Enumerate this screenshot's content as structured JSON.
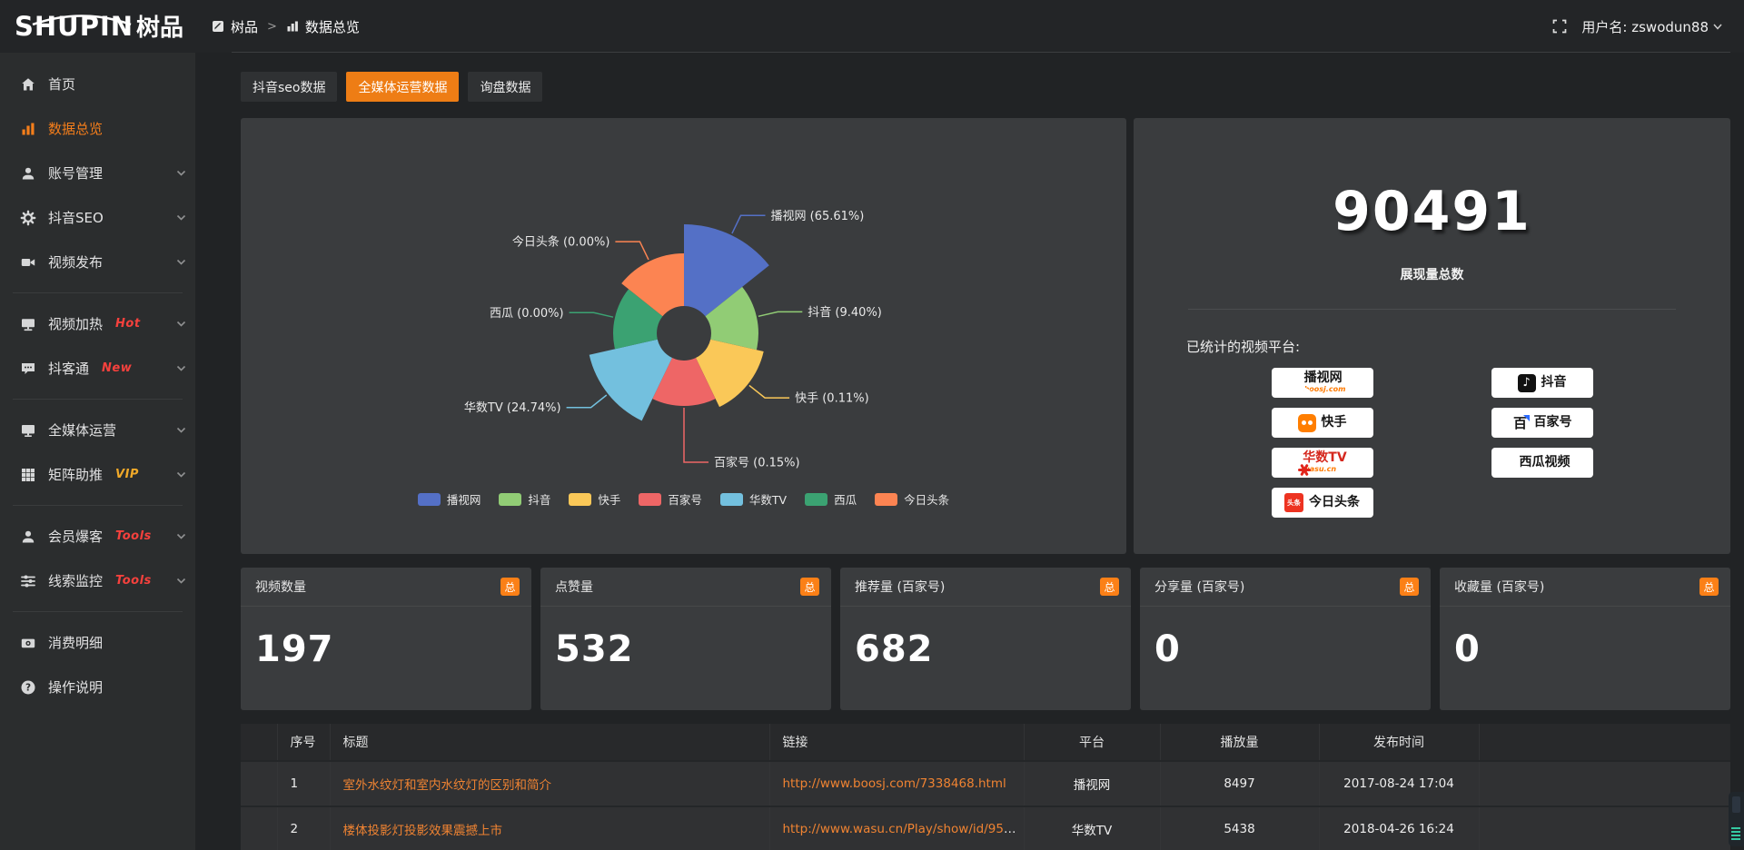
{
  "colors": {
    "accent_orange": "#ee7d15",
    "link_orange": "#ef8332",
    "badge_orange": "#fb8017",
    "tag_red": "#f5413d",
    "tag_vip": "#f0a929"
  },
  "header": {
    "logo_en": "SHUPIN",
    "logo_cn": "树品",
    "breadcrumb": {
      "root": "树品",
      "sep": ">",
      "current": "数据总览"
    },
    "user_label": "用户名: zswodun88"
  },
  "sidebar": {
    "items": [
      {
        "id": "home",
        "label": "首页",
        "icon": "home-icon"
      },
      {
        "id": "data-overview",
        "label": "数据总览",
        "icon": "chart-icon",
        "active": true
      },
      {
        "id": "account-management",
        "label": "账号管理",
        "icon": "user-icon",
        "chevron": true
      },
      {
        "id": "douyin-seo",
        "label": "抖音SEO",
        "icon": "gear-icon",
        "chevron": true
      },
      {
        "id": "video-publish",
        "label": "视频发布",
        "icon": "video-icon",
        "chevron": true,
        "divider_after": true
      },
      {
        "id": "video-heat",
        "label": "视频加热",
        "icon": "screen-icon",
        "tag": "Hot",
        "tag_style": "red",
        "chevron": true
      },
      {
        "id": "douketong",
        "label": "抖客通",
        "icon": "chat-icon",
        "tag": "New",
        "tag_style": "red",
        "chevron": true,
        "divider_after": true
      },
      {
        "id": "omnimedia",
        "label": "全媒体运营",
        "icon": "monitor-icon",
        "chevron": true
      },
      {
        "id": "matrix-boost",
        "label": "矩阵助推",
        "icon": "grid-icon",
        "tag": "VIP",
        "tag_style": "vip",
        "chevron": true,
        "divider_after": true
      },
      {
        "id": "member-baoke",
        "label": "会员爆客",
        "icon": "member-icon",
        "tag": "Tools",
        "tag_style": "red",
        "chevron": true
      },
      {
        "id": "clue-monitor",
        "label": "线索监控",
        "icon": "sliders-icon",
        "tag": "Tools",
        "tag_style": "red",
        "chevron": true,
        "divider_after": true
      },
      {
        "id": "consumption-detail",
        "label": "消费明细",
        "icon": "wallet-icon"
      },
      {
        "id": "operation-guide",
        "label": "操作说明",
        "icon": "help-icon"
      }
    ]
  },
  "tabs": [
    {
      "id": "douyin-seo-data",
      "label": "抖音seo数据",
      "active": false
    },
    {
      "id": "omnimedia-data",
      "label": "全媒体运营数据",
      "active": true
    },
    {
      "id": "inquiry-data",
      "label": "询盘数据",
      "active": false
    }
  ],
  "chart_data": {
    "type": "pie",
    "variant": "nightingale-rose",
    "categories": [
      "播视网",
      "抖音",
      "快手",
      "百家号",
      "华数TV",
      "西瓜",
      "今日头条"
    ],
    "values_pct": [
      65.61,
      9.4,
      0.11,
      0.15,
      24.74,
      0,
      0
    ],
    "labels_display": [
      "播视网 (65.61%)",
      "抖音 (9.40%)",
      "快手 (0.11%)",
      "百家号 (0.15%)",
      "华数TV (24.74%)",
      "西瓜 (0.00%)",
      "今日头条 (0.00%)"
    ],
    "colors": [
      "#5470c6",
      "#91cc75",
      "#fac858",
      "#ee6666",
      "#73c0de",
      "#3ba272",
      "#fc8452"
    ],
    "display_outer_radii": [
      120,
      82,
      90,
      80,
      107,
      78,
      88
    ],
    "inner_radius": 30,
    "legend_position": "bottom",
    "legend": [
      "播视网",
      "抖音",
      "快手",
      "百家号",
      "华数TV",
      "西瓜",
      "今日头条"
    ]
  },
  "summary": {
    "total": "90491",
    "total_label": "展现量总数",
    "platforms_label": "已统计的视频平台:",
    "platforms": [
      {
        "name": "播视网",
        "caption": "boosj.com",
        "logo": "boosj"
      },
      {
        "name": "抖音",
        "logo": "douyin"
      },
      {
        "name": "快手",
        "logo": "kuaishou"
      },
      {
        "name": "百家号",
        "logo": "baijiahao"
      },
      {
        "name": "华数TV",
        "caption": "wasu.cn",
        "logo": "wasu"
      },
      {
        "name": "西瓜视频",
        "logo": "xigua"
      },
      {
        "name": "今日头条",
        "logo": "toutiao"
      }
    ]
  },
  "stat_cards": [
    {
      "label": "视频数量",
      "badge": "总",
      "value": "197"
    },
    {
      "label": "点赞量",
      "badge": "总",
      "value": "532"
    },
    {
      "label": "推荐量 (百家号)",
      "badge": "总",
      "value": "682"
    },
    {
      "label": "分享量 (百家号)",
      "badge": "总",
      "value": "0"
    },
    {
      "label": "收藏量 (百家号)",
      "badge": "总",
      "value": "0"
    }
  ],
  "table": {
    "headers": [
      "序号",
      "标题",
      "链接",
      "平台",
      "播放量",
      "发布时间"
    ],
    "rows": [
      {
        "no": "1",
        "title": "室外水纹灯和室内水纹灯的区别和简介",
        "link": "http://www.boosj.com/7338468.html",
        "platform": "播视网",
        "plays": "8497",
        "published": "2017-08-24 17:04",
        "checked": false
      },
      {
        "no": "2",
        "title": "楼体投影灯投影效果震撼上市",
        "link": "http://www.wasu.cn/Play/show/id/952...",
        "platform": "华数TV",
        "plays": "5438",
        "published": "2018-04-26 16:24",
        "checked": false
      }
    ]
  }
}
